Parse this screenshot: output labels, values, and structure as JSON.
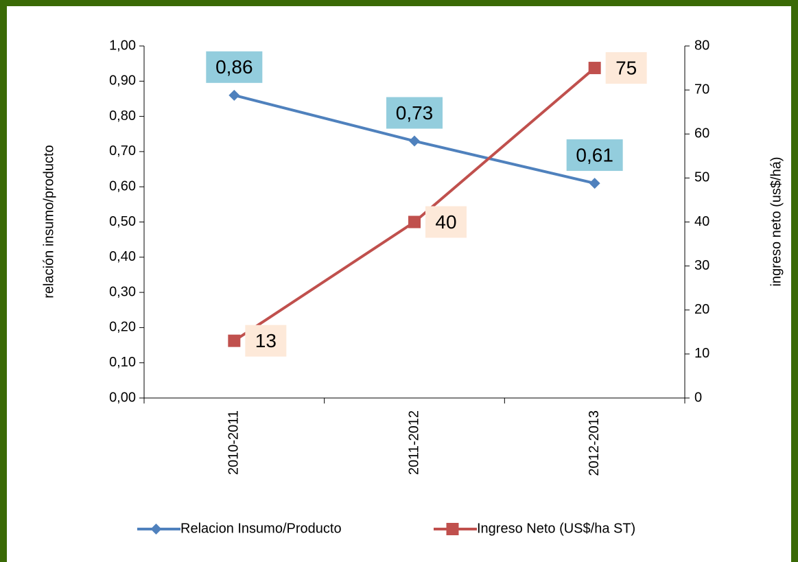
{
  "chart_data": {
    "type": "line",
    "categories": [
      "2010-2011",
      "2011-2012",
      "2012-2013"
    ],
    "series": [
      {
        "name": "Relacion Insumo/Producto",
        "color": "#4f81bd",
        "values": [
          0.86,
          0.73,
          0.61
        ],
        "value_labels": [
          "0,86",
          "0,73",
          "0,61"
        ],
        "label_color": "#93cddd"
      },
      {
        "name": "Ingreso Neto (US$/ha ST)",
        "color": "#c0504d",
        "values": [
          13,
          40,
          75
        ],
        "axis": "y2",
        "label_color": "#fde9d9"
      }
    ],
    "ylabel": "relación insumo/producto",
    "y2label": "ingreso neto (us$/há)",
    "ylim": [
      0,
      1
    ],
    "yticks": [
      {
        "value": 0,
        "label": "0,00"
      },
      {
        "value": 0.1,
        "label": "0,10"
      },
      {
        "value": 0.2,
        "label": "0,20"
      },
      {
        "value": 0.3,
        "label": "0,30"
      },
      {
        "value": 0.4,
        "label": "0,40"
      },
      {
        "value": 0.5,
        "label": "0,50"
      },
      {
        "value": 0.6,
        "label": "0,60"
      },
      {
        "value": 0.7,
        "label": "0,70"
      },
      {
        "value": 0.8,
        "label": "0,80"
      },
      {
        "value": 0.9,
        "label": "0,90"
      },
      {
        "value": 1,
        "label": "1,00"
      }
    ],
    "y2lim": [
      0,
      80
    ],
    "y2ticks": [
      0,
      10,
      20,
      30,
      40,
      50,
      60,
      70,
      80
    ],
    "legend": "bottom"
  }
}
